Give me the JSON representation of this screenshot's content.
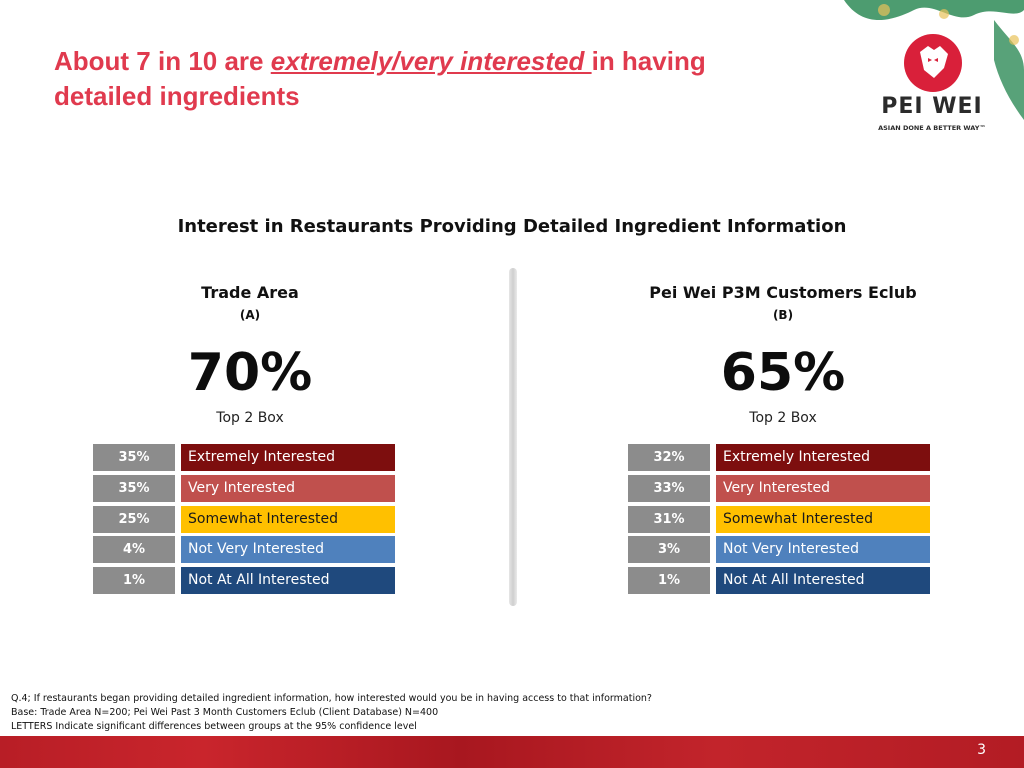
{
  "slide": {
    "title_part1": "About 7 in 10 are ",
    "title_emphasis": "extremely/very interested ",
    "title_part2": "in having detailed ingredients",
    "page_number": "3"
  },
  "logo": {
    "wordmark": "PEI WEI",
    "tagline": "ASIAN DONE A BETTER WAY™"
  },
  "footnote": {
    "line1": "Q.4; If restaurants began providing detailed ingredient information, how interested would you be in having access to that information?",
    "line2": "Base: Trade Area  N=200; Pei Wei  Past 3 Month Customers Eclub (Client Database) N=400",
    "line3": "LETTERS Indicate significant differences between groups at the 95% confidence level"
  },
  "colors": {
    "title": "#e03a4e",
    "pct_box": "#8c8c8c",
    "extremely": "#7d0e0e",
    "very": "#c0504d",
    "somewhat": "#ffc000",
    "not_very": "#4f81bd",
    "not_at_all": "#1f497d"
  },
  "chart_data": {
    "type": "table",
    "title": "Interest in Restaurants Providing Detailed Ingredient Information",
    "categories": [
      "Extremely Interested",
      "Very Interested",
      "Somewhat Interested",
      "Not Very Interested",
      "Not At All Interested"
    ],
    "groups": [
      {
        "name": "Trade Area",
        "letter": "(A)",
        "top2_value": "70%",
        "top2_label": "Top 2 Box",
        "values": [
          "35%",
          "35%",
          "25%",
          "4%",
          "1%"
        ]
      },
      {
        "name": "Pei Wei P3M Customers Eclub",
        "letter": "(B)",
        "top2_value": "65%",
        "top2_label": "Top 2 Box",
        "values": [
          "32%",
          "33%",
          "31%",
          "3%",
          "1%"
        ]
      }
    ]
  }
}
